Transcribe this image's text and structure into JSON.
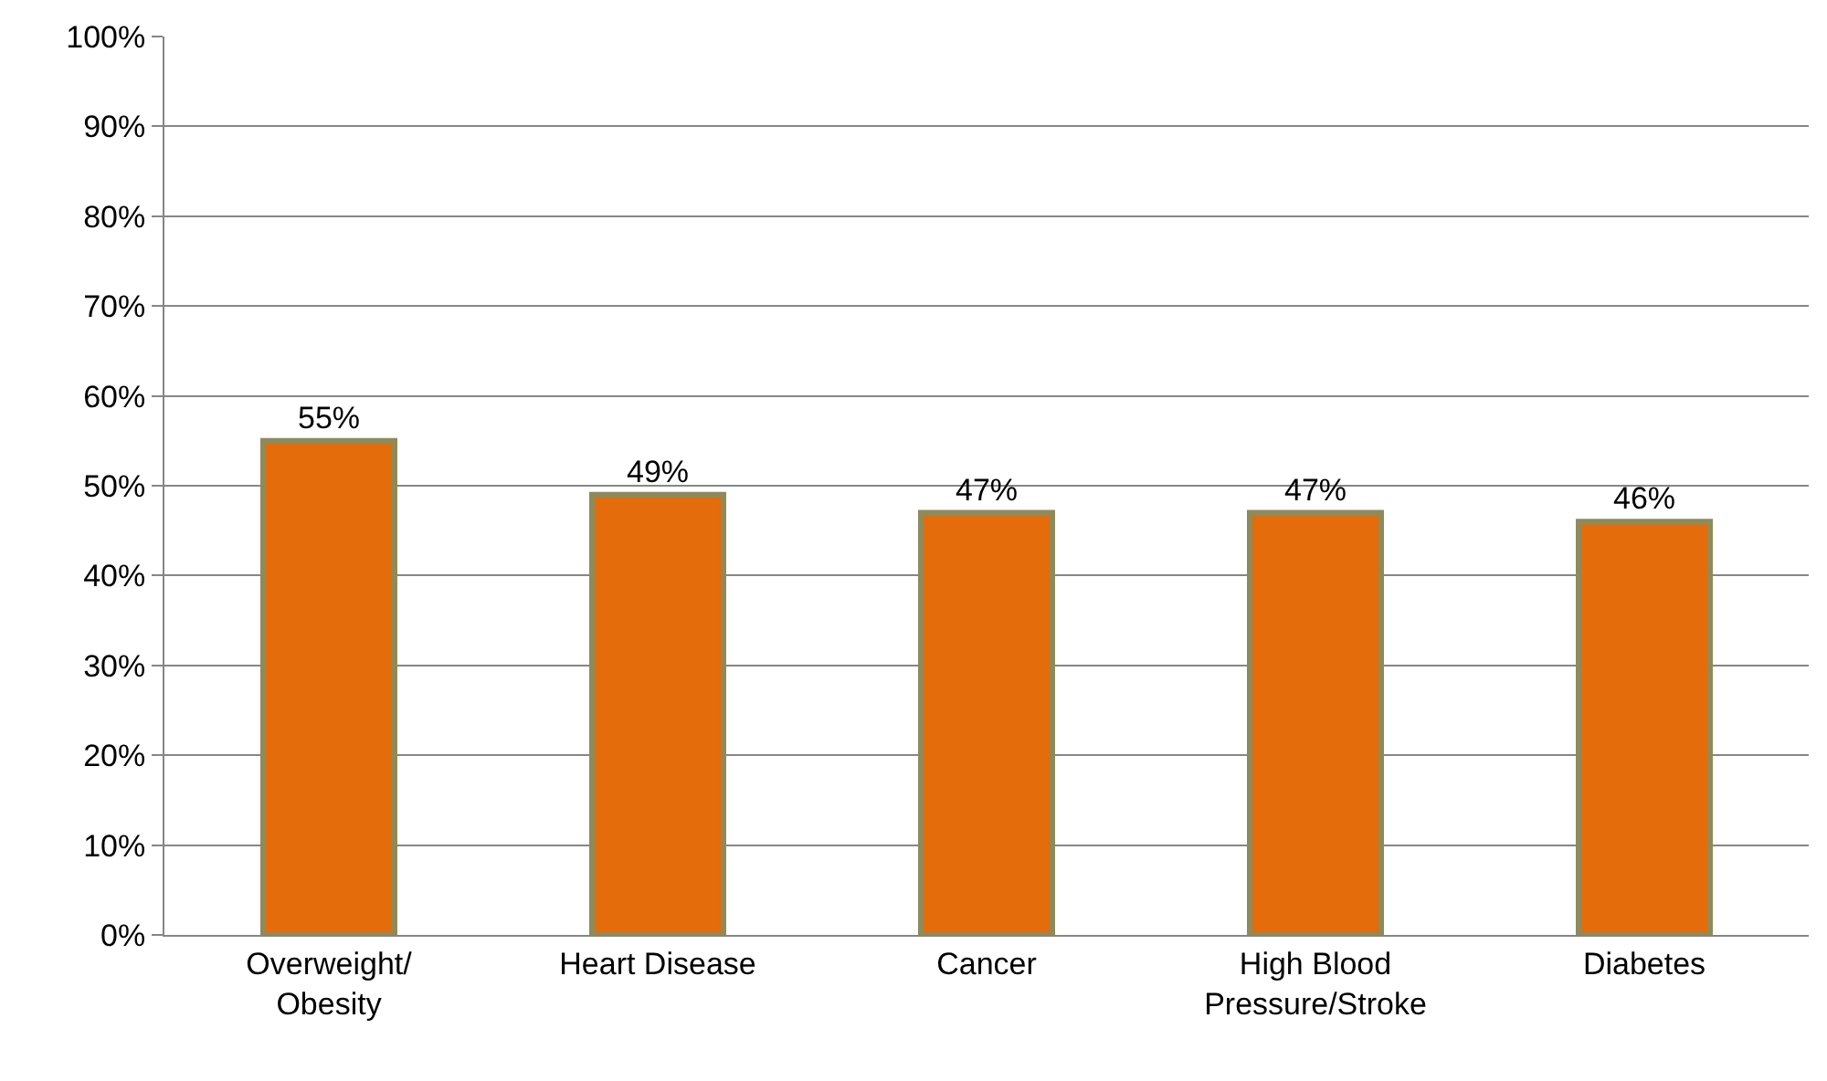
{
  "chart_data": {
    "type": "bar",
    "categories": [
      "Overweight/ Obesity",
      "Heart Disease",
      "Cancer",
      "High Blood Pressure/Stroke",
      "Diabetes"
    ],
    "values": [
      55,
      49,
      47,
      47,
      46
    ],
    "value_labels": [
      "55%",
      "49%",
      "47%",
      "47%",
      "46%"
    ],
    "color": "#e46c0a",
    "ylim": [
      0,
      100
    ],
    "yticks": [
      {
        "value": 0,
        "label": "0%"
      },
      {
        "value": 10,
        "label": "10%"
      },
      {
        "value": 20,
        "label": "20%"
      },
      {
        "value": 30,
        "label": "30%"
      },
      {
        "value": 40,
        "label": "40%"
      },
      {
        "value": 50,
        "label": "50%"
      },
      {
        "value": 60,
        "label": "60%"
      },
      {
        "value": 70,
        "label": "70%"
      },
      {
        "value": 80,
        "label": "80%"
      },
      {
        "value": 90,
        "label": "90%"
      },
      {
        "value": 100,
        "label": "100%"
      }
    ],
    "grid": "y"
  }
}
